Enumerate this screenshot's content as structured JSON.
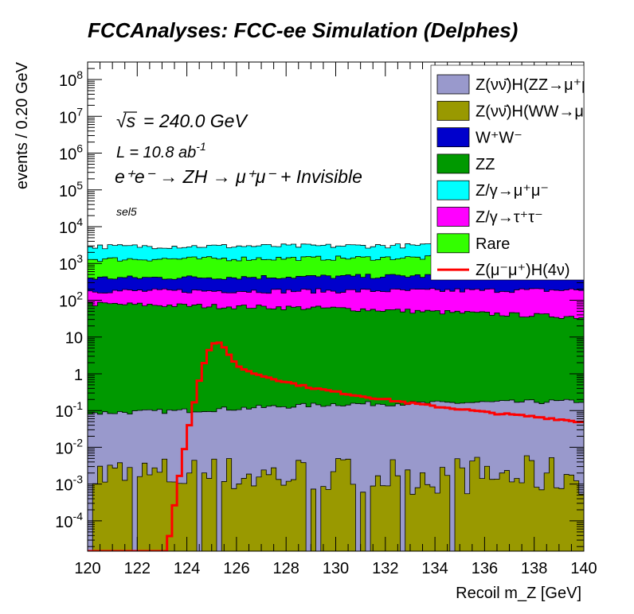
{
  "chart_data": {
    "type": "area",
    "title": "FCCAnalyses: FCC-ee Simulation (Delphes)",
    "xlabel": "Recoil m_Z [GeV]",
    "ylabel": "events / 0.20 GeV",
    "xlim": [
      120,
      140
    ],
    "ylim": [
      1.5e-05,
      300000000.0
    ],
    "yscale": "log",
    "bin_width": 0.2,
    "x_ticks": [
      120,
      122,
      124,
      126,
      128,
      130,
      132,
      134,
      136,
      138,
      140
    ],
    "y_ticks": [
      {
        "value": 0.0001,
        "base": "10",
        "exp": "-4"
      },
      {
        "value": 0.001,
        "base": "10",
        "exp": "-3"
      },
      {
        "value": 0.01,
        "base": "10",
        "exp": "-2"
      },
      {
        "value": 0.1,
        "base": "10",
        "exp": "-1"
      },
      {
        "value": 1,
        "base": "1",
        "exp": ""
      },
      {
        "value": 10,
        "base": "10",
        "exp": ""
      },
      {
        "value": 100,
        "base": "10",
        "exp": "2"
      },
      {
        "value": 1000,
        "base": "10",
        "exp": "3"
      },
      {
        "value": 10000,
        "base": "10",
        "exp": "4"
      },
      {
        "value": 100000,
        "base": "10",
        "exp": "5"
      },
      {
        "value": 1000000,
        "base": "10",
        "exp": "6"
      },
      {
        "value": 10000000,
        "base": "10",
        "exp": "7"
      },
      {
        "value": 100000000,
        "base": "10",
        "exp": "8"
      }
    ],
    "annotations": {
      "sqrt_s": "= 240.0 GeV",
      "lumi": "L = 10.8 ab",
      "lumi_exp": "-1",
      "process": "e⁺e⁻ → ZH → μ⁺μ⁻ + Invisible",
      "selection": "sel5"
    },
    "legend_position": "top-right",
    "series": [
      {
        "name": "Z(νν̄)H(WW→μ⁺νμ⁻ν̄)",
        "color": "#999900",
        "stack_order": 0,
        "level_range": [
          0.0005,
          0.006
        ]
      },
      {
        "name": "Z(νν̄)H(ZZ→μ⁺μ⁻νν̄)",
        "color": "#9999cc",
        "stack_order": 1,
        "cumulative_top": {
          "x": [
            120,
            124,
            130,
            134,
            140
          ],
          "y": [
            0.085,
            0.1,
            0.15,
            0.16,
            0.18
          ]
        }
      },
      {
        "name": "ZZ",
        "color": "#009900",
        "stack_order": 2,
        "cumulative_top": {
          "x": [
            120,
            130,
            140
          ],
          "y": [
            80,
            60,
            35
          ]
        }
      },
      {
        "name": "Z/γ→τ⁺τ⁻",
        "color": "#ff00ff",
        "stack_order": 3,
        "cumulative_top": {
          "x": [
            120,
            130,
            140
          ],
          "y": [
            180,
            180,
            190
          ]
        }
      },
      {
        "name": "W⁺W⁻",
        "color": "#0000cc",
        "stack_order": 4,
        "cumulative_top": {
          "x": [
            120,
            130,
            140
          ],
          "y": [
            400,
            440,
            500
          ]
        }
      },
      {
        "name": "Rare",
        "color": "#33ff00",
        "stack_order": 5,
        "cumulative_top": {
          "x": [
            120,
            130,
            140
          ],
          "y": [
            1300,
            1400,
            1500
          ]
        }
      },
      {
        "name": "Z/γ→μ⁺μ⁻",
        "color": "#00ffff",
        "stack_order": 6,
        "cumulative_top": {
          "x": [
            120,
            130,
            140
          ],
          "y": [
            2900,
            3000,
            3200
          ]
        }
      },
      {
        "name": "Z(μ⁻μ⁺)H(4ν)",
        "color": "#ff0000",
        "style": "line",
        "x": [
          120,
          123.2,
          123.4,
          123.6,
          123.8,
          124.0,
          124.2,
          124.4,
          124.6,
          124.8,
          125.0,
          125.2,
          125.4,
          125.6,
          125.8,
          126.0,
          126.4,
          127,
          128,
          129,
          130,
          131,
          132,
          133,
          134,
          135,
          136,
          137,
          138,
          139,
          140
        ],
        "y": [
          1.5e-05,
          1.5e-05,
          0.0001,
          0.0007,
          0.004,
          0.02,
          0.08,
          0.35,
          1.2,
          3.2,
          6.0,
          7.5,
          6.5,
          4.2,
          2.6,
          1.8,
          1.2,
          0.9,
          0.6,
          0.42,
          0.32,
          0.25,
          0.2,
          0.16,
          0.13,
          0.11,
          0.09,
          0.078,
          0.068,
          0.058,
          0.048
        ]
      }
    ],
    "legend_entries": [
      {
        "label": "Z(νν̄)H(ZZ→μ⁺μ⁻νν̄)",
        "color": "#9999cc",
        "kind": "box"
      },
      {
        "label": "Z(νν̄)H(WW→μ⁺νμ⁻ν̄)",
        "color": "#999900",
        "kind": "box"
      },
      {
        "label": "W⁺W⁻",
        "color": "#0000cc",
        "kind": "box"
      },
      {
        "label": "ZZ",
        "color": "#009900",
        "kind": "box"
      },
      {
        "label": "Z/γ→μ⁺μ⁻",
        "color": "#00ffff",
        "kind": "box"
      },
      {
        "label": "Z/γ→τ⁺τ⁻",
        "color": "#ff00ff",
        "kind": "box"
      },
      {
        "label": "Rare",
        "color": "#33ff00",
        "kind": "box"
      },
      {
        "label": "Z(μ⁻μ⁺)H(4ν)",
        "color": "#ff0000",
        "kind": "line"
      }
    ]
  }
}
